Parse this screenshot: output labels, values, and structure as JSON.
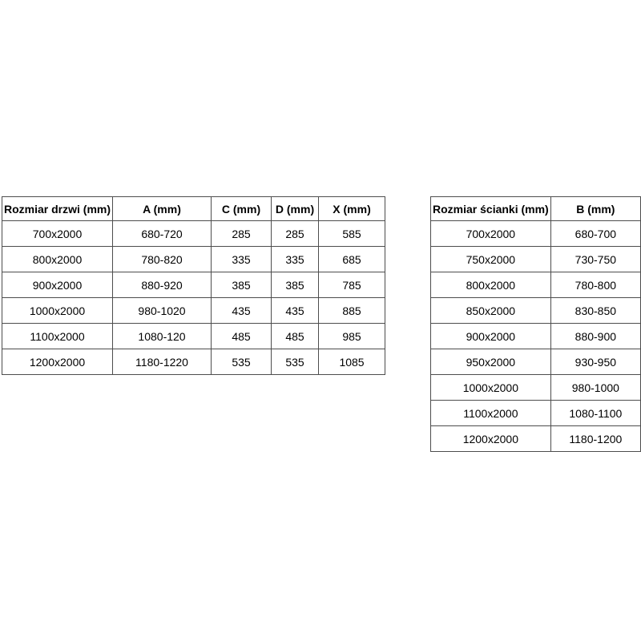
{
  "page": {
    "background_color": "#ffffff",
    "text_color": "#000000",
    "border_color": "#4d4d4d"
  },
  "tables": [
    {
      "name": "door-size-table",
      "headers": [
        "Rozmiar drzwi (mm)",
        "A (mm)",
        "C (mm)",
        "D (mm)",
        "X (mm)"
      ],
      "rows": [
        [
          "700x2000",
          "680-720",
          "285",
          "285",
          "585"
        ],
        [
          "800x2000",
          "780-820",
          "335",
          "335",
          "685"
        ],
        [
          "900x2000",
          "880-920",
          "385",
          "385",
          "785"
        ],
        [
          "1000x2000",
          "980-1020",
          "435",
          "435",
          "885"
        ],
        [
          "1100x2000",
          "1080-120",
          "485",
          "485",
          "985"
        ],
        [
          "1200x2000",
          "1180-1220",
          "535",
          "535",
          "1085"
        ]
      ]
    },
    {
      "name": "wall-size-table",
      "headers": [
        "Rozmiar ścianki (mm)",
        "B (mm)"
      ],
      "rows": [
        [
          "700x2000",
          "680-700"
        ],
        [
          "750x2000",
          "730-750"
        ],
        [
          "800x2000",
          "780-800"
        ],
        [
          "850x2000",
          "830-850"
        ],
        [
          "900x2000",
          "880-900"
        ],
        [
          "950x2000",
          "930-950"
        ],
        [
          "1000x2000",
          "980-1000"
        ],
        [
          "1100x2000",
          "1080-1100"
        ],
        [
          "1200x2000",
          "1180-1200"
        ]
      ]
    }
  ]
}
